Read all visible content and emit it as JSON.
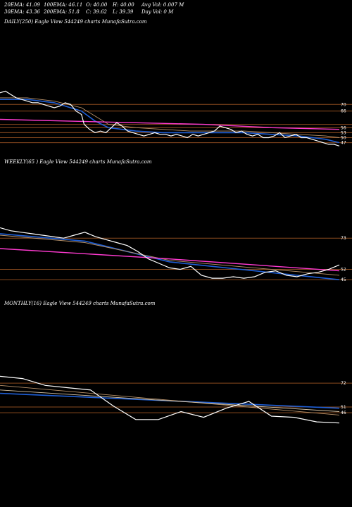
{
  "header": {
    "ema20": "20EMA: 41.09",
    "ema100": "100EMA: 46.11",
    "open": "O: 40.00",
    "high": "H: 40.00",
    "avg_vol": "Avg Vol: 0.007 M",
    "ema30": "30EMA: 43.36",
    "ema200": "200EMA: 51.8",
    "close": "C: 39.62",
    "low": "L: 39.39",
    "day_vol": "Day Vol: 0  M"
  },
  "colors": {
    "background": "#000000",
    "price": "#ffffff",
    "ema_blue": "#1f5fd6",
    "ema_pink": "#ff3ad1",
    "ema_brown": "#b8926a",
    "hline": "#8a4a1e"
  },
  "chart_data": [
    {
      "type": "line",
      "title": "DAILY(250) Eagle  View  544249 charts MunafaSutra.com",
      "y_ticks": [
        "70",
        "66",
        "56",
        "53",
        "50",
        "47"
      ],
      "h_levels": [
        70,
        66,
        58,
        56,
        53,
        50,
        47
      ],
      "ylim": [
        43,
        82
      ],
      "series": [
        {
          "role": "price",
          "x": [
            0,
            4,
            8,
            12,
            16,
            20,
            24,
            28,
            32,
            36,
            40,
            44,
            48,
            52,
            56,
            60,
            62,
            66,
            70,
            74,
            78,
            82,
            86,
            90,
            94,
            98,
            102,
            106,
            110,
            114,
            118,
            122,
            126,
            130,
            134,
            138,
            142,
            146,
            150,
            154,
            158,
            162,
            166,
            170,
            174,
            178,
            182,
            186,
            190,
            194,
            198,
            202,
            206,
            210,
            214,
            218,
            222,
            226,
            230,
            234,
            238,
            242,
            246,
            250
          ],
          "values": [
            77,
            78,
            76,
            74,
            73,
            72,
            71,
            71,
            70,
            69,
            68,
            69,
            71,
            70,
            66,
            64,
            58,
            55,
            53,
            54,
            53,
            56,
            59,
            57,
            54,
            53,
            52,
            51,
            52,
            53,
            52,
            52,
            51,
            52,
            51,
            50,
            52,
            51,
            52,
            53,
            54,
            57,
            56,
            55,
            53,
            54,
            52,
            51,
            52,
            50,
            50,
            51,
            53,
            50,
            51,
            52,
            50,
            50,
            49,
            48,
            47,
            46,
            46,
            45
          ]
        },
        {
          "role": "ema-blue",
          "x": [
            0,
            20,
            40,
            60,
            70,
            80,
            100,
            120,
            140,
            160,
            180,
            200,
            220,
            240,
            250
          ],
          "values": [
            73,
            73,
            71,
            66,
            60,
            56,
            54,
            53,
            53,
            53,
            53,
            52,
            51,
            49,
            47
          ]
        },
        {
          "role": "ema-brown",
          "x": [
            0,
            20,
            40,
            60,
            70,
            80,
            100,
            120,
            140,
            160,
            180,
            200,
            220,
            240,
            250
          ],
          "values": [
            74,
            74,
            72,
            68,
            63,
            58,
            56,
            55,
            54,
            54,
            54,
            53,
            52,
            51,
            50
          ]
        },
        {
          "role": "ema-pink",
          "x": [
            0,
            50,
            100,
            150,
            200,
            250
          ],
          "values": [
            61,
            60,
            59,
            58,
            56,
            55
          ]
        }
      ]
    },
    {
      "type": "line",
      "title": "WEEKLY(65                    ) Eagle  View  544249 charts MunafaSutra.com",
      "y_ticks": [
        "73",
        "52",
        "45"
      ],
      "h_levels": [
        73,
        52,
        45
      ],
      "ylim": [
        38,
        84
      ],
      "series": [
        {
          "role": "price",
          "x": [
            0,
            2,
            4,
            6,
            8,
            10,
            12,
            14,
            16,
            18,
            20,
            22,
            24,
            26,
            28,
            30,
            32,
            34,
            36,
            38,
            40,
            42,
            44,
            46,
            48,
            50,
            52,
            54,
            56,
            58,
            60,
            62,
            64
          ],
          "values": [
            80,
            78,
            77,
            76,
            75,
            74,
            73,
            75,
            77,
            74,
            72,
            70,
            68,
            64,
            59,
            56,
            53,
            52,
            54,
            48,
            46,
            46,
            47,
            46,
            47,
            50,
            51,
            48,
            47,
            49,
            50,
            52,
            55
          ]
        },
        {
          "role": "ema-blue",
          "x": [
            0,
            16,
            32,
            48,
            64
          ],
          "values": [
            76,
            71,
            57,
            51,
            45
          ]
        },
        {
          "role": "ema-brown",
          "x": [
            0,
            16,
            32,
            48,
            64
          ],
          "values": [
            75,
            70,
            58,
            53,
            48
          ]
        },
        {
          "role": "ema-pink",
          "x": [
            0,
            32,
            64
          ],
          "values": [
            66,
            59,
            51
          ]
        }
      ]
    },
    {
      "type": "line",
      "title": "MONTHLY(16) Eagle  View  544249 charts MunafaSutra.com",
      "y_ticks": [
        "72",
        "51",
        "46"
      ],
      "h_levels": [
        72,
        51,
        46
      ],
      "ylim": [
        30,
        90
      ],
      "series": [
        {
          "role": "price",
          "x": [
            0,
            1,
            2,
            3,
            4,
            5,
            6,
            7,
            8,
            9,
            10,
            11,
            12,
            13,
            14,
            15
          ],
          "values": [
            78,
            76,
            70,
            68,
            66,
            52,
            40,
            40,
            47,
            42,
            50,
            56,
            43,
            42,
            38,
            37
          ]
        },
        {
          "role": "ema-blue",
          "x": [
            0,
            15
          ],
          "values": [
            63,
            50
          ]
        },
        {
          "role": "ema-brown",
          "x": [
            0,
            15
          ],
          "values": [
            70,
            44
          ]
        },
        {
          "role": "ema-brown-2",
          "x": [
            0,
            15
          ],
          "values": [
            66,
            47
          ]
        }
      ]
    }
  ]
}
